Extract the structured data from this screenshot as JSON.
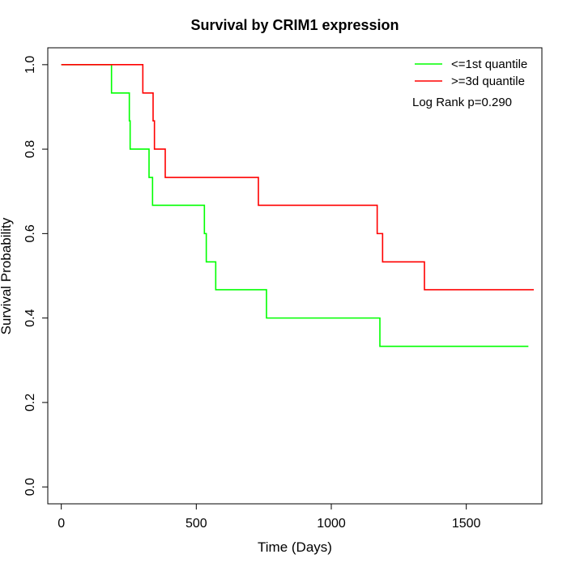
{
  "chart_data": {
    "type": "line",
    "step": true,
    "title": "Survival by CRIM1 expression",
    "xlabel": "Time (Days)",
    "ylabel": "Survival Probability",
    "xlim": [
      -50,
      1780
    ],
    "ylim": [
      -0.04,
      1.04
    ],
    "xticks": [
      0,
      500,
      1000,
      1500
    ],
    "yticks": [
      0.0,
      0.2,
      0.4,
      0.6,
      0.8,
      1.0
    ],
    "xtick_labels": [
      "0",
      "500",
      "1000",
      "1500"
    ],
    "ytick_labels": [
      "0.0",
      "0.2",
      "0.4",
      "0.6",
      "0.8",
      "1.0"
    ],
    "grid": false,
    "legend_position": "top-right",
    "annotation": "Log Rank p=0.290",
    "series": [
      {
        "name": "<=1st quantile",
        "color": "#00ff00",
        "x": [
          0,
          186,
          252,
          255,
          325,
          338,
          530,
          537,
          572,
          760,
          1180,
          1730
        ],
        "y": [
          1.0,
          0.933,
          0.867,
          0.8,
          0.733,
          0.667,
          0.6,
          0.533,
          0.467,
          0.4,
          0.333,
          0.333
        ]
      },
      {
        "name": ">=3d quantile",
        "color": "#ff0000",
        "x": [
          0,
          302,
          340,
          345,
          385,
          730,
          1170,
          1190,
          1345,
          1750
        ],
        "y": [
          1.0,
          0.933,
          0.867,
          0.8,
          0.733,
          0.667,
          0.6,
          0.533,
          0.467,
          0.467
        ]
      }
    ]
  }
}
